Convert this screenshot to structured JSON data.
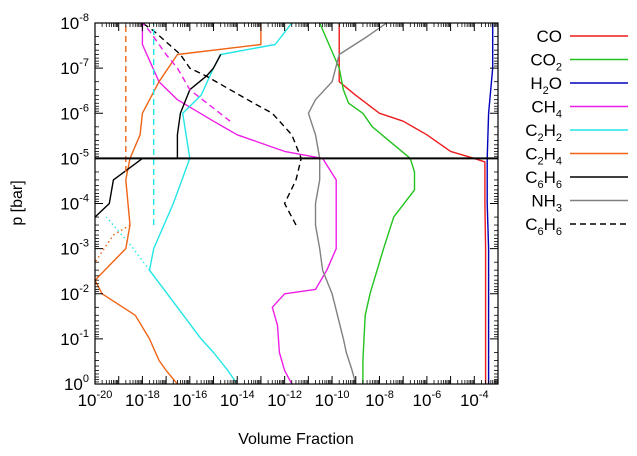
{
  "chart_data": {
    "type": "line",
    "title": "",
    "xlabel": "Volume Fraction",
    "ylabel": "p [bar]",
    "x_scale": "log",
    "y_scale": "log",
    "y_inverted": true,
    "xlim": [
      1e-20,
      0.001
    ],
    "ylim": [
      1,
      1e-08
    ],
    "grid": false,
    "legend_position": "outside-right",
    "x_ticks": [
      {
        "base": "10",
        "exp": "-20",
        "value": 1e-20
      },
      {
        "base": "10",
        "exp": "-18",
        "value": 1e-18
      },
      {
        "base": "10",
        "exp": "-16",
        "value": 1e-16
      },
      {
        "base": "10",
        "exp": "-14",
        "value": 1e-14
      },
      {
        "base": "10",
        "exp": "-12",
        "value": 1e-12
      },
      {
        "base": "10",
        "exp": "-10",
        "value": 1e-10
      },
      {
        "base": "10",
        "exp": "-8",
        "value": 1e-08
      },
      {
        "base": "10",
        "exp": "-6",
        "value": 1e-06
      },
      {
        "base": "10",
        "exp": "-4",
        "value": 0.0001
      }
    ],
    "y_ticks": [
      {
        "base": "10",
        "exp": "-8",
        "value": 1e-08
      },
      {
        "base": "10",
        "exp": "-7",
        "value": 1e-07
      },
      {
        "base": "10",
        "exp": "-6",
        "value": 1e-06
      },
      {
        "base": "10",
        "exp": "-5",
        "value": 1e-05
      },
      {
        "base": "10",
        "exp": "-4",
        "value": 0.0001
      },
      {
        "base": "10",
        "exp": "-3",
        "value": 0.001
      },
      {
        "base": "10",
        "exp": "-2",
        "value": 0.01
      },
      {
        "base": "10",
        "exp": "-1",
        "value": 0.1
      },
      {
        "base": "10",
        "exp": "0",
        "value": 1
      }
    ],
    "annotations": [
      {
        "type": "hline",
        "y": 1e-05,
        "color": "#000000"
      }
    ],
    "series": [
      {
        "key": "co",
        "label_parts": [
          [
            "CO",
            ""
          ]
        ],
        "color": "#ee1c1c",
        "dash": "solid",
        "points": [
          [
            0.0003,
            1
          ],
          [
            0.0003,
            0.1
          ],
          [
            0.0003,
            0.01
          ],
          [
            0.0003,
            0.001
          ],
          [
            0.00028,
            0.0001
          ],
          [
            0.00028,
            1.2e-05
          ],
          [
            0.0001,
            1e-05
          ],
          [
            1e-05,
            7e-06
          ],
          [
            1e-06,
            3e-06
          ],
          [
            1e-07,
            1.5e-06
          ],
          [
            1e-08,
            1e-06
          ],
          [
            1e-09,
            4e-07
          ],
          [
            2e-10,
            2e-07
          ],
          [
            2e-10,
            1e-08
          ]
        ]
      },
      {
        "key": "co2",
        "label_parts": [
          [
            "CO",
            ""
          ],
          [
            "2",
            "sub"
          ]
        ],
        "color": "#22c31e",
        "dash": "solid",
        "points": [
          [
            2e-09,
            1
          ],
          [
            2e-09,
            0.3
          ],
          [
            2.5e-09,
            0.03
          ],
          [
            4e-09,
            0.01
          ],
          [
            1.5e-08,
            0.001
          ],
          [
            4e-08,
            0.0002
          ],
          [
            3e-07,
            5e-05
          ],
          [
            3e-07,
            2e-05
          ],
          [
            2e-07,
            1e-05
          ],
          [
            5e-09,
            2e-06
          ],
          [
            2e-09,
            1e-06
          ],
          [
            5e-10,
            6e-07
          ],
          [
            3e-10,
            3e-07
          ],
          [
            2e-10,
            1e-07
          ],
          [
            3e-11,
            1e-08
          ]
        ]
      },
      {
        "key": "h2o",
        "label_parts": [
          [
            "H",
            ""
          ],
          [
            "2",
            "sub"
          ],
          [
            "O",
            ""
          ]
        ],
        "color": "#0000bb",
        "dash": "solid",
        "points": [
          [
            0.0004,
            1
          ],
          [
            0.0004,
            0.001
          ],
          [
            0.00035,
            0.0001
          ],
          [
            0.00035,
            1e-05
          ],
          [
            0.0004,
            1e-06
          ],
          [
            0.0006,
            1e-07
          ],
          [
            0.0006,
            1e-08
          ]
        ]
      },
      {
        "key": "ch4",
        "label_parts": [
          [
            "CH",
            ""
          ],
          [
            "4",
            "sub"
          ]
        ],
        "color": "#ee1ee8",
        "dash": "solid",
        "points": [
          [
            2e-12,
            1
          ],
          [
            1e-12,
            0.5
          ],
          [
            6e-13,
            0.2
          ],
          [
            5e-13,
            0.05
          ],
          [
            3e-13,
            0.02
          ],
          [
            1e-12,
            0.01
          ],
          [
            2e-11,
            0.008
          ],
          [
            6e-11,
            0.003
          ],
          [
            1.5e-10,
            0.001
          ],
          [
            1.5e-10,
            0.0001
          ],
          [
            1.5e-10,
            3e-05
          ],
          [
            4e-11,
            1e-05
          ],
          [
            1e-12,
            7e-06
          ],
          [
            1e-14,
            3e-06
          ],
          [
            1e-15,
            1.5e-06
          ],
          [
            3e-17,
            5e-07
          ],
          [
            5e-18,
            2e-07
          ],
          [
            1e-18,
            3e-08
          ],
          [
            1e-18,
            1e-08
          ]
        ]
      },
      {
        "key": "c2h2",
        "label_parts": [
          [
            "C",
            ""
          ],
          [
            "2",
            "sub"
          ],
          [
            "H",
            ""
          ],
          [
            "2",
            "sub"
          ]
        ],
        "color": "#22e6e6",
        "dash": "solid",
        "points": [
          [
            1e-14,
            1
          ],
          [
            4e-15,
            0.5
          ],
          [
            1e-15,
            0.2
          ],
          [
            3e-16,
            0.1
          ],
          [
            3e-17,
            0.02
          ],
          [
            2e-18,
            0.003
          ],
          [
            3e-18,
            0.001
          ],
          [
            2e-17,
            0.0001
          ],
          [
            1e-16,
            1e-05
          ],
          [
            5e-17,
            1e-06
          ],
          [
            3e-16,
            4e-07
          ],
          [
            1e-15,
            1e-07
          ],
          [
            2e-15,
            5e-08
          ],
          [
            4e-13,
            3e-08
          ],
          [
            2e-12,
            1e-08
          ]
        ]
      },
      {
        "key": "c2h2_dotted",
        "legend": false,
        "color": "#22e6e6",
        "dash": "dotted",
        "points": [
          [
            2e-18,
            0.003
          ],
          [
            3e-19,
            0.0008
          ],
          [
            3e-20,
            0.0002
          ]
        ]
      },
      {
        "key": "c2h4",
        "label_parts": [
          [
            "C",
            ""
          ],
          [
            "2",
            "sub"
          ],
          [
            "H",
            ""
          ],
          [
            "4",
            "sub"
          ]
        ],
        "color": "#ee6414",
        "dash": "solid",
        "points": [
          [
            3e-17,
            1
          ],
          [
            1e-17,
            0.5
          ],
          [
            5e-18,
            0.3
          ],
          [
            2e-18,
            0.1
          ],
          [
            5e-19,
            0.03
          ],
          [
            2e-20,
            0.01
          ],
          [
            1e-20,
            0.005
          ],
          [
            2e-19,
            0.001
          ],
          [
            3e-19,
            0.0003
          ],
          [
            2e-19,
            3e-05
          ],
          [
            3e-19,
            1e-05
          ],
          [
            8e-19,
            3e-06
          ],
          [
            1e-18,
            1e-06
          ],
          [
            5e-18,
            2e-07
          ],
          [
            3e-17,
            5e-08
          ],
          [
            1e-13,
            3e-08
          ],
          [
            1e-13,
            1e-08
          ]
        ]
      },
      {
        "key": "c2h4_dotted",
        "legend": false,
        "color": "#ee6414",
        "dash": "dotted",
        "points": [
          [
            3e-19,
            0.0003
          ],
          [
            6e-20,
            0.0005
          ],
          [
            1e-20,
            0.002
          ]
        ]
      },
      {
        "key": "c6h6",
        "label_parts": [
          [
            "C",
            ""
          ],
          [
            "6",
            "sub"
          ],
          [
            "H",
            ""
          ],
          [
            "6",
            "sub"
          ]
        ],
        "color": "#000000",
        "dash": "solid",
        "points": [
          [
            1e-20,
            0.0002
          ],
          [
            4e-20,
            0.0001
          ],
          [
            6e-20,
            3e-05
          ],
          [
            1e-18,
            1e-05
          ],
          [
            3e-17,
            1e-05
          ],
          [
            3e-17,
            3e-06
          ],
          [
            4e-17,
            1e-06
          ],
          [
            1e-16,
            3e-07
          ],
          [
            5e-16,
            1.5e-07
          ],
          [
            1e-15,
            1e-07
          ],
          [
            2e-15,
            5e-08
          ]
        ]
      },
      {
        "key": "nh3",
        "label_parts": [
          [
            "NH",
            ""
          ],
          [
            "3",
            "sub"
          ]
        ],
        "color": "#808080",
        "dash": "solid",
        "points": [
          [
            1e-09,
            1
          ],
          [
            7e-10,
            0.5
          ],
          [
            4e-10,
            0.2
          ],
          [
            3e-10,
            0.1
          ],
          [
            1e-10,
            0.01
          ],
          [
            4e-11,
            0.003
          ],
          [
            3e-11,
            0.001
          ],
          [
            2e-11,
            0.0003
          ],
          [
            2e-11,
            0.0001
          ],
          [
            3e-11,
            3e-05
          ],
          [
            3e-11,
            1e-05
          ],
          [
            2e-11,
            3e-06
          ],
          [
            1e-11,
            1e-06
          ],
          [
            2e-11,
            5e-07
          ],
          [
            1e-10,
            2e-07
          ],
          [
            2e-10,
            5e-08
          ],
          [
            3e-09,
            2e-08
          ],
          [
            2e-08,
            1e-08
          ]
        ]
      },
      {
        "key": "c6h6_dashed",
        "label_parts": [
          [
            "C",
            ""
          ],
          [
            "6",
            "sub"
          ],
          [
            "H",
            ""
          ],
          [
            "6",
            "sub"
          ]
        ],
        "color": "#000000",
        "dash": "dashed",
        "points": [
          [
            3e-12,
            0.0003
          ],
          [
            1e-12,
            0.0001
          ],
          [
            3e-12,
            3e-05
          ],
          [
            5e-12,
            1e-05
          ],
          [
            2e-12,
            3e-06
          ],
          [
            3e-13,
            1e-06
          ],
          [
            5e-14,
            6e-07
          ],
          [
            5e-15,
            3e-07
          ],
          [
            5e-16,
            1.5e-07
          ],
          [
            1e-16,
            1e-07
          ],
          [
            4e-17,
            5e-08
          ],
          [
            3e-18,
            1.5e-08
          ],
          [
            1e-18,
            1e-08
          ]
        ]
      },
      {
        "key": "dashed_magenta",
        "legend": false,
        "color": "#ee1ee8",
        "dash": "dashed",
        "points": [
          [
            5e-15,
            1.5e-06
          ],
          [
            1e-16,
            3e-07
          ],
          [
            3e-17,
            1e-07
          ],
          [
            1e-17,
            5e-08
          ],
          [
            2e-18,
            1.5e-08
          ],
          [
            1e-18,
            1e-08
          ]
        ]
      },
      {
        "key": "dashed_cyan",
        "legend": false,
        "color": "#22e6e6",
        "dash": "dashed",
        "points": [
          [
            3e-18,
            0.0003
          ],
          [
            3e-18,
            1e-08
          ]
        ]
      },
      {
        "key": "dashed_orange",
        "legend": false,
        "color": "#ee6414",
        "dash": "dashed",
        "points": [
          [
            2e-19,
            2e-05
          ],
          [
            2e-19,
            1e-08
          ]
        ]
      }
    ]
  }
}
